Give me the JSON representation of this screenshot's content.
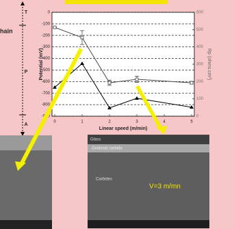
{
  "side_labels": {
    "cut_heading": "hain",
    "top": "T",
    "middle": "P",
    "bottom": "A"
  },
  "chart_data": {
    "type": "line",
    "x_label": "Linear speed (m/min)",
    "y_label": "Potential (mV)",
    "y2_label": "Rp (ohms.cm²)",
    "x": [
      0,
      1,
      2,
      3,
      5
    ],
    "xlim": [
      0,
      5
    ],
    "xticks": [
      0,
      1,
      2,
      3,
      4,
      5
    ],
    "ylim": [
      -900,
      0
    ],
    "yticks": [
      0,
      -100,
      -200,
      -300,
      -400,
      -500,
      -600,
      -700,
      -800,
      -900
    ],
    "y2lim": [
      0,
      600
    ],
    "y2ticks": [
      0,
      100,
      200,
      300,
      400,
      500,
      600
    ],
    "grid": true,
    "series": [
      {
        "name": "Rp",
        "axis": "y2",
        "color": "#444444",
        "values": [
          513,
          454,
          193,
          213,
          193
        ],
        "errors": [
          0,
          40,
          15,
          18,
          8
        ]
      },
      {
        "name": "Potential",
        "axis": "y",
        "color": "#000000",
        "values": [
          -650,
          -444,
          -828,
          -745,
          -822
        ]
      }
    ]
  },
  "photos": {
    "glass": "Glass",
    "oxidized": "Oxidized carbide",
    "carbides": "Carbides",
    "speed": "V=3 m/mn"
  }
}
